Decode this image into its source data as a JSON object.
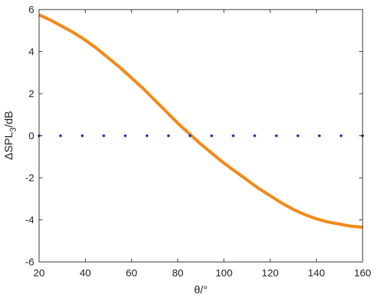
{
  "chart_data": {
    "type": "line",
    "title": "",
    "xlabel": "θ/°",
    "ylabel": {
      "prefix": "ΔSPL",
      "subscript": "3",
      "suffix": "/dB"
    },
    "xlim": [
      20,
      160
    ],
    "ylim": [
      -6,
      6
    ],
    "xticks": [
      20,
      40,
      60,
      80,
      100,
      120,
      140,
      160
    ],
    "yticks": [
      -6,
      -4,
      -2,
      0,
      2,
      4,
      6
    ],
    "grid": false,
    "legend": "none",
    "series": [
      {
        "style": "solid",
        "color": "#F28A19",
        "x": [
          20,
          25,
          30,
          35,
          40,
          45,
          50,
          55,
          60,
          65,
          70,
          75,
          80,
          85,
          90,
          95,
          100,
          105,
          110,
          115,
          120,
          125,
          130,
          135,
          140,
          145,
          150,
          155,
          160
        ],
        "y": [
          5.75,
          5.5,
          5.2,
          4.9,
          4.55,
          4.15,
          3.7,
          3.25,
          2.75,
          2.25,
          1.7,
          1.15,
          0.6,
          0.1,
          -0.4,
          -0.85,
          -1.3,
          -1.7,
          -2.1,
          -2.5,
          -2.85,
          -3.2,
          -3.5,
          -3.75,
          -3.95,
          -4.1,
          -4.2,
          -4.3,
          -4.35
        ]
      },
      {
        "style": "dotted",
        "color": "#1F2FCC",
        "x": [
          20,
          29.3,
          38.7,
          48,
          57.3,
          66.7,
          76,
          85.3,
          94.7,
          104,
          113.3,
          122.7,
          132,
          141.3,
          150.7,
          160
        ],
        "y": [
          0,
          0,
          0,
          0,
          0,
          0,
          0,
          0,
          0,
          0,
          0,
          0,
          0,
          0,
          0,
          0
        ]
      }
    ]
  }
}
